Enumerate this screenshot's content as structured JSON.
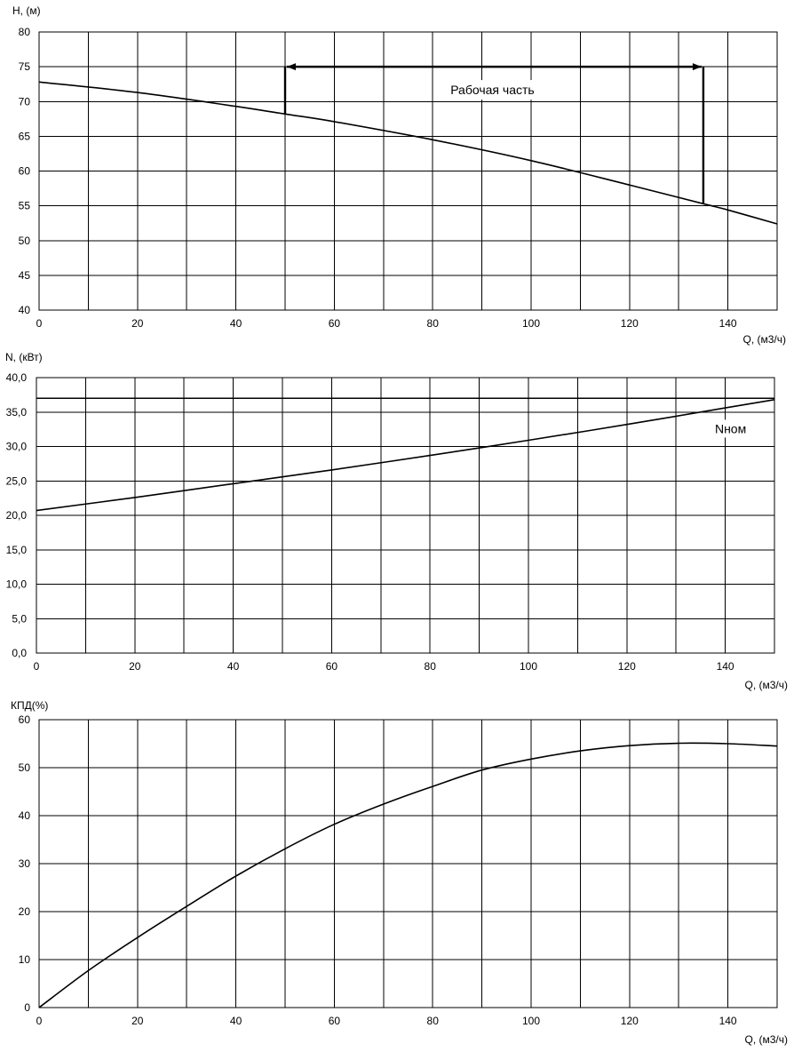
{
  "chart_data": [
    {
      "type": "line",
      "ylabel": "H, (м)",
      "xlabel": "Q, (м3/ч)",
      "xlim": [
        0,
        150
      ],
      "ylim": [
        40,
        80
      ],
      "grid": true,
      "x_ticks": [
        "0",
        "20",
        "40",
        "60",
        "80",
        "100",
        "120",
        "140"
      ],
      "y_ticks": [
        "40",
        "45",
        "50",
        "55",
        "60",
        "65",
        "70",
        "75",
        "80"
      ],
      "series": [
        {
          "x": [
            0,
            20,
            40,
            50,
            60,
            80,
            100,
            120,
            135,
            140,
            150
          ],
          "y": [
            72.8,
            71.3,
            69.3,
            68.2,
            67.1,
            64.5,
            61.5,
            58.0,
            55.3,
            54.4,
            52.4
          ]
        }
      ],
      "annotation": {
        "text": "Рабочая часть",
        "q_start": 50,
        "q_end": 135,
        "level": 75
      }
    },
    {
      "type": "line",
      "ylabel": "N, (кВт)",
      "xlabel": "Q, (м3/ч)",
      "xlim": [
        0,
        150
      ],
      "ylim": [
        0,
        40
      ],
      "grid": true,
      "x_ticks": [
        "0",
        "20",
        "40",
        "60",
        "80",
        "100",
        "120",
        "140"
      ],
      "y_ticks": [
        "0,0",
        "5,0",
        "10,0",
        "15,0",
        "20,0",
        "25,0",
        "30,0",
        "35,0",
        "40,0"
      ],
      "series": [
        {
          "x": [
            0,
            20,
            40,
            60,
            80,
            100,
            120,
            140,
            150
          ],
          "y": [
            20.7,
            22.6,
            24.6,
            26.6,
            28.7,
            30.9,
            33.2,
            35.6,
            36.8
          ]
        },
        {
          "name": "Nном",
          "x": [
            0,
            150
          ],
          "y": [
            37.0,
            37.0
          ]
        }
      ],
      "annotation": {
        "text": "Nном",
        "q": 140,
        "level": 32.2
      }
    },
    {
      "type": "line",
      "ylabel": "КПД(%)",
      "xlabel": "Q, (м3/ч)",
      "xlim": [
        0,
        150
      ],
      "ylim": [
        0,
        60
      ],
      "grid": true,
      "x_ticks": [
        "0",
        "20",
        "40",
        "60",
        "80",
        "100",
        "120",
        "140"
      ],
      "y_ticks": [
        "0",
        "10",
        "20",
        "30",
        "40",
        "50",
        "60"
      ],
      "series": [
        {
          "x": [
            0,
            10,
            20,
            30,
            40,
            50,
            60,
            70,
            80,
            90,
            100,
            110,
            120,
            130,
            140,
            150
          ],
          "y": [
            0,
            7.7,
            14.6,
            21.1,
            27.4,
            33.1,
            38.2,
            42.4,
            46.1,
            49.5,
            51.8,
            53.5,
            54.6,
            55.1,
            55.0,
            54.5
          ]
        }
      ]
    }
  ]
}
